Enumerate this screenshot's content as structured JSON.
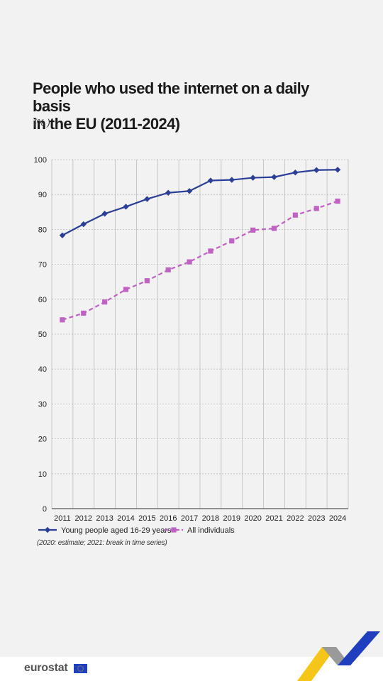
{
  "header": {
    "title_line1": "People who used the internet on a daily basis",
    "title_line2": "in the EU (2011-2024)",
    "unit": "(% )"
  },
  "footnote": "(2020: estimate; 2021: break in time series)",
  "footer": {
    "logo_text": "eurostat",
    "flag_icon": "eu-flag-icon"
  },
  "colors": {
    "young": "#2b3f97",
    "all": "#c061c4",
    "grid": "#bdbdbd",
    "axis": "#333333",
    "brand_yellow": "#f5c518",
    "brand_blue": "#1f3fbf"
  },
  "chart_data": {
    "type": "line",
    "title": "People who used the internet on a daily basis in the EU (2011-2024)",
    "ylabel": "(% )",
    "xlabel": "",
    "x": [
      "2011",
      "2012",
      "2013",
      "2014",
      "2015",
      "2016",
      "2017",
      "2018",
      "2019",
      "2020",
      "2021",
      "2022",
      "2023",
      "2024"
    ],
    "ylim": [
      0,
      100
    ],
    "yticks": [
      0,
      10,
      20,
      30,
      40,
      50,
      60,
      70,
      80,
      90,
      100
    ],
    "grid": true,
    "legend_position": "bottom-left",
    "series": [
      {
        "name": "Young people aged 16-29 years",
        "marker": "diamond",
        "line_style": "solid",
        "values": [
          78.3,
          81.5,
          84.5,
          86.5,
          88.7,
          90.5,
          91.0,
          94.0,
          94.2,
          94.8,
          95.0,
          96.3,
          97.0,
          97.1
        ]
      },
      {
        "name": "All individuals",
        "marker": "square",
        "line_style": "dashed",
        "values": [
          54.1,
          56.0,
          59.2,
          62.8,
          65.3,
          68.4,
          70.7,
          73.8,
          76.7,
          79.8,
          80.3,
          84.1,
          86.0,
          88.1
        ]
      }
    ]
  }
}
